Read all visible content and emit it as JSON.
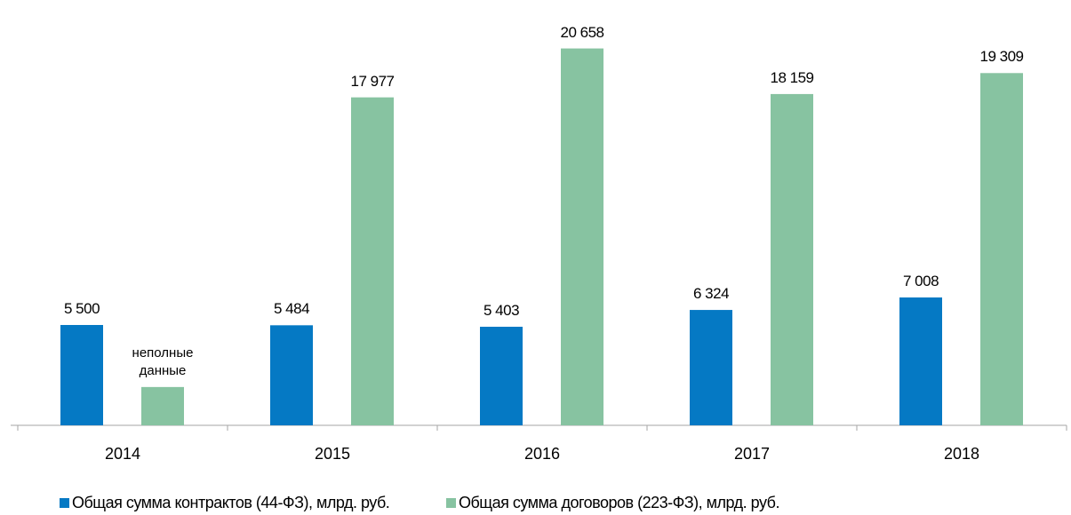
{
  "chart_data": {
    "type": "bar",
    "categories": [
      "2014",
      "2015",
      "2016",
      "2017",
      "2018"
    ],
    "series": [
      {
        "name": "Общая сумма контрактов (44-ФЗ), млрд. руб.",
        "color": "#0579c4",
        "values": [
          5500,
          5484,
          5403,
          6324,
          7008
        ],
        "value_labels": [
          "5 500",
          "5 484",
          "5 403",
          "6 324",
          "7 008"
        ]
      },
      {
        "name": "Общая сумма договоров (223-ФЗ), млрд. руб.",
        "color": "#87c3a1",
        "values": [
          2100,
          17977,
          20658,
          18159,
          19309
        ],
        "value_labels": [
          "неполные данные",
          "17 977",
          "20 658",
          "18 159",
          "19 309"
        ]
      }
    ],
    "ylim": [
      0,
      22000
    ],
    "legend": "bottom"
  }
}
